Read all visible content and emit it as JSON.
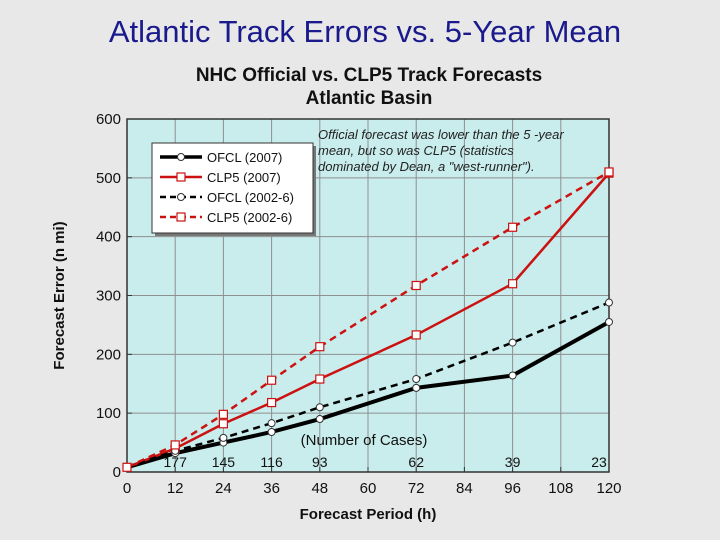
{
  "slide_title": "Atlantic Track Errors vs. 5-Year Mean",
  "chart_data": {
    "type": "line",
    "title": "NHC Official vs. CLP5 Track Forecasts",
    "subtitle": "Atlantic Basin",
    "xlabel": "Forecast Period (h)",
    "ylabel": "Forecast Error (n mi)",
    "x": [
      0,
      12,
      24,
      36,
      48,
      72,
      96,
      120
    ],
    "xticks": [
      0,
      12,
      24,
      36,
      48,
      60,
      72,
      84,
      96,
      108,
      120
    ],
    "yticks": [
      0,
      100,
      200,
      300,
      400,
      500,
      600
    ],
    "xlim": [
      0,
      120
    ],
    "ylim": [
      0,
      600
    ],
    "grid": true,
    "legend_position": "top-left",
    "series": [
      {
        "name": "OFCL (2007)",
        "values": [
          8,
          32,
          50,
          68,
          90,
          143,
          164,
          255
        ],
        "color": "#000000",
        "dashed": false,
        "marker": "circle"
      },
      {
        "name": "CLP5 (2007)",
        "values": [
          8,
          40,
          82,
          118,
          158,
          233,
          320,
          508
        ],
        "color": "#cc1111",
        "dashed": false,
        "marker": "square"
      },
      {
        "name": "OFCL (2002-6)",
        "values": [
          8,
          36,
          58,
          83,
          110,
          158,
          220,
          288
        ],
        "color": "#000000",
        "dashed": true,
        "marker": "circle"
      },
      {
        "name": "CLP5 (2002-6)",
        "values": [
          8,
          46,
          98,
          156,
          213,
          317,
          416,
          510
        ],
        "color": "#cc1111",
        "dashed": true,
        "marker": "square"
      }
    ],
    "cases_label": "(Number of Cases)",
    "cases": [
      {
        "x": 12,
        "label": "177"
      },
      {
        "x": 24,
        "label": "145"
      },
      {
        "x": 36,
        "label": "116"
      },
      {
        "x": 48,
        "label": "93"
      },
      {
        "x": 72,
        "label": "62"
      },
      {
        "x": 96,
        "label": "39"
      },
      {
        "x": 120,
        "label": "23"
      }
    ],
    "annotation": "Official forecast was lower than the 5 -year mean, but so was CLP5 (statistics dominated by Dean, a \"west-runner\").",
    "colors": {
      "plot_background": "#c9ecec",
      "grid": "#8f8f8f",
      "red": "#cc1111",
      "black": "#000000"
    }
  }
}
